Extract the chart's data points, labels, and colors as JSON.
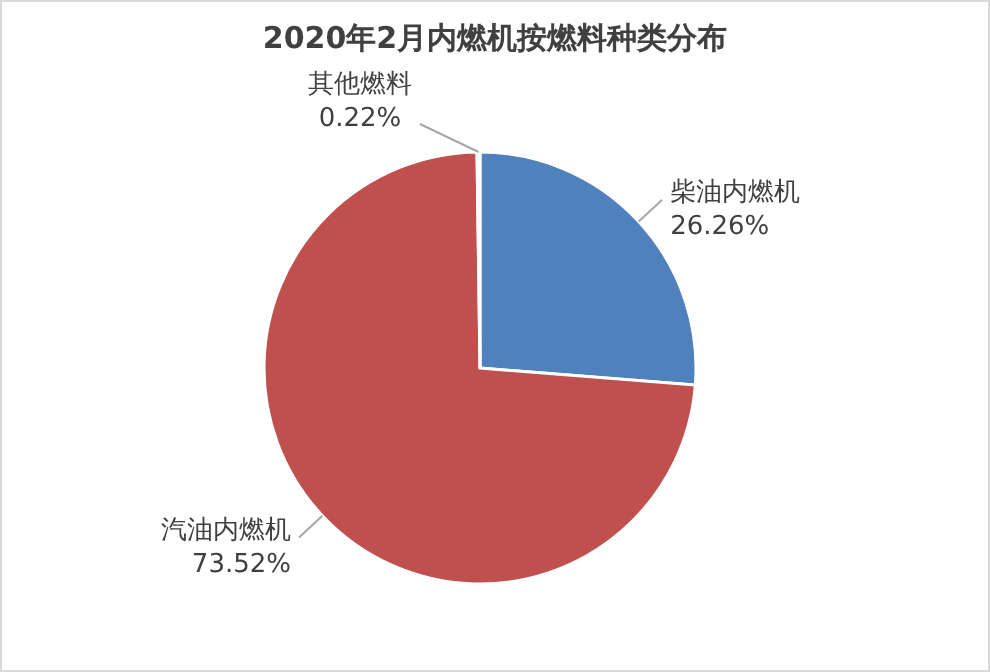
{
  "chart_data": {
    "type": "pie",
    "title": "2020年2月内燃机按燃料种类分布",
    "categories": [
      "柴油内燃机",
      "汽油内燃机",
      "其他燃料"
    ],
    "values": [
      26.26,
      73.52,
      0.22
    ],
    "colors": [
      "#4f81bd",
      "#c0504d",
      "#9bbb59"
    ],
    "value_labels": [
      "26.26%",
      "73.52%",
      "0.22%"
    ]
  }
}
